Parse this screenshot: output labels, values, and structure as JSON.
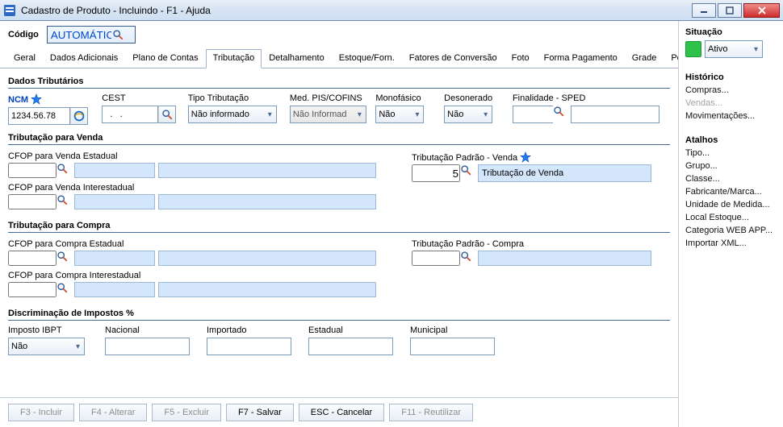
{
  "window": {
    "title": "Cadastro de Produto - Incluindo - F1 - Ajuda"
  },
  "header": {
    "codigo_label": "Código",
    "codigo_value": "AUTOMÁTICO"
  },
  "tabs": {
    "items": [
      "Geral",
      "Dados Adicionais",
      "Plano de Contas",
      "Tributação",
      "Detalhamento",
      "Estoque/Forn.",
      "Fatores de Conversão",
      "Foto",
      "Forma Pagamento",
      "Grade",
      "Personali"
    ],
    "selected_index": 3
  },
  "section_dados": {
    "title": "Dados Tributários",
    "labels": {
      "ncm": "NCM",
      "cest": "CEST",
      "tipo_trib": "Tipo Tributação",
      "med_pis": "Med. PIS/COFINS",
      "mono": "Monofásico",
      "deson": "Desonerado",
      "fin_sped": "Finalidade - SPED"
    },
    "values": {
      "ncm": "1234.56.78",
      "cest": "  .   .",
      "tipo_trib": "Não informado",
      "med_pis": "Não Informad",
      "mono": "Não",
      "deson": "Não",
      "fin_sped_code": "",
      "fin_sped_desc": ""
    }
  },
  "section_venda": {
    "title": "Tributação para Venda",
    "labels": {
      "cfop_est": "CFOP para Venda Estadual",
      "cfop_int": "CFOP para Venda Interestadual",
      "trib_padrao": "Tributação Padrão - Venda"
    },
    "trib_padrao": {
      "code": "5",
      "desc": "Tributação de Venda"
    }
  },
  "section_compra": {
    "title": "Tributação para Compra",
    "labels": {
      "cfop_est": "CFOP para Compra Estadual",
      "cfop_int": "CFOP para Compra Interestadual",
      "trib_padrao": "Tributação Padrão - Compra"
    }
  },
  "section_imposto": {
    "title": "Discriminação de Impostos %",
    "labels": {
      "ibpt": "Imposto IBPT",
      "nacional": "Nacional",
      "importado": "Importado",
      "estadual": "Estadual",
      "municipal": "Municipal"
    },
    "ibpt": "Não"
  },
  "bottom_buttons": {
    "f3": "F3 - Incluir",
    "f4": "F4 - Alterar",
    "f5": "F5 - Excluir",
    "f7": "F7 - Salvar",
    "esc": "ESC - Cancelar",
    "f11": "F11 - Reutilizar"
  },
  "sidebar": {
    "situacao_label": "Situação",
    "status_value": "Ativo",
    "status_color": "#2fc24a",
    "historico_label": "Histórico",
    "historico_items": [
      {
        "text": "Compras...",
        "enabled": true
      },
      {
        "text": "Vendas...",
        "enabled": false
      },
      {
        "text": "Movimentações...",
        "enabled": true
      }
    ],
    "atalhos_label": "Atalhos",
    "atalhos_items": [
      "Tipo...",
      "Grupo...",
      "Classe...",
      "Fabricante/Marca...",
      "Unidade de Medida...",
      "Local Estoque...",
      "Categoria WEB APP...",
      "Importar XML..."
    ]
  }
}
